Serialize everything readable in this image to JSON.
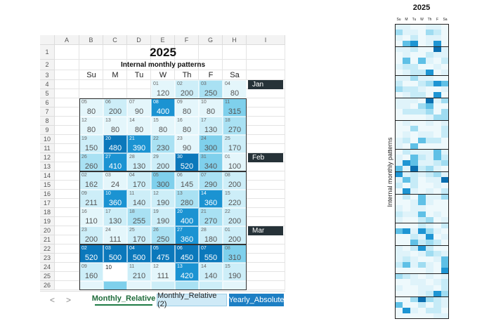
{
  "sheet": {
    "columns": [
      "A",
      "B",
      "C",
      "D",
      "E",
      "F",
      "G",
      "H",
      "I"
    ],
    "rows": [
      1,
      2,
      3,
      4,
      5,
      6,
      7,
      8,
      9,
      10,
      11,
      12,
      13,
      14,
      15,
      16,
      17,
      18,
      19,
      20,
      21,
      22,
      23,
      24,
      25,
      26
    ],
    "title": "2025",
    "subtitle": "Internal monthly patterns",
    "weekdays": [
      "Su",
      "M",
      "Tu",
      "W",
      "Th",
      "F",
      "Sa"
    ],
    "weeks": [
      {
        "month": "Jan",
        "cells": [
          null,
          null,
          null,
          {
            "day": "01",
            "value": 120
          },
          {
            "day": "02",
            "value": 200
          },
          {
            "day": "03",
            "value": 250
          },
          {
            "day": "04",
            "value": 80
          }
        ]
      },
      {
        "cells": [
          {
            "day": "05",
            "value": 80
          },
          {
            "day": "06",
            "value": 200
          },
          {
            "day": "07",
            "value": 90
          },
          {
            "day": "08",
            "value": 400
          },
          {
            "day": "09",
            "value": 80
          },
          {
            "day": "10",
            "value": 80
          },
          {
            "day": "11",
            "value": 315
          }
        ]
      },
      {
        "cells": [
          {
            "day": "12",
            "value": 80
          },
          {
            "day": "13",
            "value": 80
          },
          {
            "day": "14",
            "value": 80
          },
          {
            "day": "15",
            "value": 80
          },
          {
            "day": "16",
            "value": 80
          },
          {
            "day": "17",
            "value": 130
          },
          {
            "day": "18",
            "value": 270
          }
        ]
      },
      {
        "cells": [
          {
            "day": "19",
            "value": 150
          },
          {
            "day": "20",
            "value": 480
          },
          {
            "day": "21",
            "value": 390
          },
          {
            "day": "22",
            "value": 230
          },
          {
            "day": "23",
            "value": 90
          },
          {
            "day": "24",
            "value": 300
          },
          {
            "day": "25",
            "value": 170
          }
        ]
      },
      {
        "month": "Feb",
        "cells": [
          {
            "day": "26",
            "value": 260
          },
          {
            "day": "27",
            "value": 410
          },
          {
            "day": "28",
            "value": 130
          },
          {
            "day": "29",
            "value": 200
          },
          {
            "day": "30",
            "value": 520
          },
          {
            "day": "31",
            "value": 340
          },
          {
            "day": "01",
            "value": 100
          }
        ]
      },
      {
        "cells": [
          {
            "day": "02",
            "value": 162
          },
          {
            "day": "03",
            "value": 24
          },
          {
            "day": "04",
            "value": 170
          },
          {
            "day": "05",
            "value": 300
          },
          {
            "day": "06",
            "value": 145
          },
          {
            "day": "07",
            "value": 290
          },
          {
            "day": "08",
            "value": 200
          }
        ]
      },
      {
        "cells": [
          {
            "day": "09",
            "value": 211
          },
          {
            "day": "10",
            "value": 360
          },
          {
            "day": "11",
            "value": 140
          },
          {
            "day": "12",
            "value": 190
          },
          {
            "day": "13",
            "value": 280
          },
          {
            "day": "14",
            "value": 360
          },
          {
            "day": "15",
            "value": 220
          }
        ]
      },
      {
        "cells": [
          {
            "day": "16",
            "value": 110
          },
          {
            "day": "17",
            "value": 130
          },
          {
            "day": "18",
            "value": 255
          },
          {
            "day": "19",
            "value": 190
          },
          {
            "day": "20",
            "value": 400
          },
          {
            "day": "21",
            "value": 270
          },
          {
            "day": "22",
            "value": 200
          }
        ]
      },
      {
        "month": "Mar",
        "cells": [
          {
            "day": "23",
            "value": 200
          },
          {
            "day": "24",
            "value": 111
          },
          {
            "day": "25",
            "value": 170
          },
          {
            "day": "26",
            "value": 250
          },
          {
            "day": "27",
            "value": 360
          },
          {
            "day": "28",
            "value": 180
          },
          {
            "day": "01",
            "value": 200
          }
        ]
      },
      {
        "cells": [
          {
            "day": "02",
            "value": 520
          },
          {
            "day": "03",
            "value": 500
          },
          {
            "day": "04",
            "value": 500
          },
          {
            "day": "05",
            "value": 475
          },
          {
            "day": "06",
            "value": 450
          },
          {
            "day": "07",
            "value": 550
          },
          {
            "day": "08",
            "value": 310
          }
        ]
      },
      {
        "cells": [
          {
            "day": "09",
            "value": 160
          },
          {
            "day": "10"
          },
          {
            "day": "11",
            "value": 210
          },
          {
            "day": "12",
            "value": 111
          },
          {
            "day": "13",
            "value": 420
          },
          {
            "day": "14",
            "value": 140
          },
          {
            "day": "15",
            "value": 190
          }
        ]
      }
    ]
  },
  "tabs": [
    "Monthly_Relative",
    "Monthly_Relative (2)",
    "Yearly_Absolute"
  ],
  "mini": {
    "title": "2025",
    "weekdays": [
      "Su",
      "M",
      "Tu",
      "W",
      "Th",
      "F",
      "Sa"
    ],
    "ylabel": "Internal monthly patterns"
  }
}
